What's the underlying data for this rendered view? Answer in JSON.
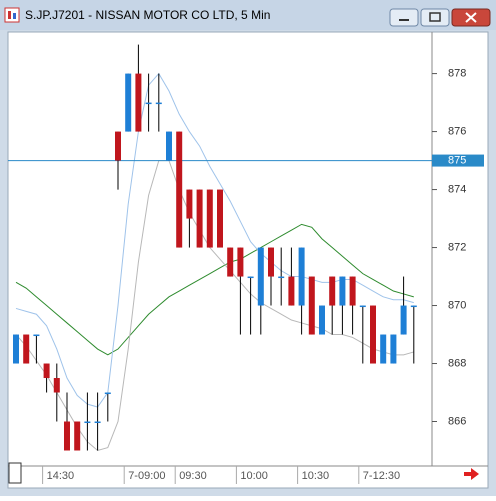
{
  "chart_data": {
    "type": "candlestick",
    "title": "S.JP.J7201 - NISSAN MOTOR CO LTD, 5 Min",
    "categories": [
      null,
      null,
      null,
      "14:30",
      null,
      null,
      null,
      null,
      null,
      null,
      null,
      "7-09:00",
      null,
      null,
      null,
      null,
      "09:30",
      null,
      null,
      null,
      null,
      null,
      "10:00",
      null,
      null,
      null,
      null,
      null,
      "10:30",
      null,
      null,
      null,
      null,
      null,
      "7-12:30",
      null,
      null,
      null,
      null,
      null
    ],
    "open": [
      868,
      869,
      869,
      868,
      867.5,
      866,
      866,
      866,
      866,
      867,
      876,
      876,
      878,
      877,
      877,
      875,
      876,
      874,
      874,
      874,
      874,
      872,
      872,
      871,
      870,
      872,
      871,
      871,
      870,
      871,
      869,
      871,
      870,
      871,
      870,
      870,
      868,
      868,
      869,
      870
    ],
    "high": [
      869,
      869,
      869,
      868,
      868,
      867,
      866,
      867,
      867,
      867,
      876,
      878,
      879,
      878,
      878,
      876,
      876,
      874,
      874,
      874,
      874,
      872,
      872,
      871,
      872,
      872,
      872,
      872,
      872,
      871,
      870,
      871,
      871,
      871,
      870,
      870,
      869,
      869,
      871,
      870
    ],
    "low": [
      868,
      868,
      868,
      867,
      866,
      865,
      865,
      865,
      865,
      866,
      874,
      876,
      876,
      876,
      876,
      875,
      872,
      872,
      872,
      872,
      872,
      871,
      869,
      869,
      869,
      870,
      870,
      870,
      869,
      869,
      869,
      869,
      869,
      869,
      868,
      868,
      868,
      868,
      869,
      868
    ],
    "close": [
      869,
      868,
      869,
      867.5,
      867,
      865,
      865,
      866,
      866,
      867,
      875,
      878,
      876,
      877,
      877,
      876,
      872,
      873,
      872,
      872,
      872,
      871,
      871,
      871,
      872,
      871,
      871,
      870,
      872,
      869,
      870,
      870,
      871,
      870,
      870,
      868,
      869,
      869,
      870,
      870
    ],
    "up_color": "#1e7fd6",
    "down_color": "#c0161d",
    "lines": [
      {
        "color": "#2e8b2e",
        "values": [
          870.8,
          870.6,
          870.3,
          870.0,
          869.7,
          869.4,
          869.1,
          868.8,
          868.5,
          868.3,
          868.5,
          868.9,
          869.3,
          869.7,
          870.0,
          870.3,
          870.5,
          870.7,
          870.9,
          871.1,
          871.3,
          871.5,
          871.6,
          871.8,
          872.0,
          872.2,
          872.4,
          872.6,
          872.8,
          872.7,
          872.3,
          872.0,
          871.7,
          871.4,
          871.1,
          870.9,
          870.7,
          870.5,
          870.4,
          870.3
        ]
      },
      {
        "color": "#9fc3ea",
        "values": [
          869.9,
          869.8,
          869.7,
          869.3,
          868.5,
          867.5,
          866.9,
          866.6,
          866.5,
          867.0,
          870.0,
          873.5,
          876.0,
          877.6,
          878.0,
          877.4,
          876.6,
          876.0,
          875.5,
          874.8,
          874.2,
          873.6,
          872.9,
          872.2,
          871.8,
          871.5,
          871.2,
          871.0,
          871.0,
          870.9,
          870.8,
          870.8,
          870.9,
          870.9,
          870.7,
          870.5,
          870.3,
          870.2,
          870.2,
          870.1
        ]
      },
      {
        "color": "#b8b8b8",
        "values": [
          869.0,
          868.6,
          868.1,
          867.6,
          867.0,
          866.4,
          865.8,
          865.3,
          865.0,
          865.1,
          866.0,
          868.5,
          871.5,
          873.8,
          875.0,
          875.0,
          874.0,
          873.2,
          872.6,
          872.0,
          871.6,
          871.2,
          870.8,
          870.4,
          870.1,
          869.9,
          869.7,
          869.5,
          869.4,
          869.3,
          869.2,
          869.0,
          869.0,
          868.9,
          868.7,
          868.5,
          868.4,
          868.3,
          868.3,
          868.4
        ]
      }
    ],
    "hline": {
      "value": 875,
      "color": "#2a8ac8",
      "label": "875"
    },
    "ylim": [
      864.5,
      879.4
    ],
    "yticks": [
      866,
      868,
      870,
      872,
      874,
      876,
      878
    ]
  }
}
